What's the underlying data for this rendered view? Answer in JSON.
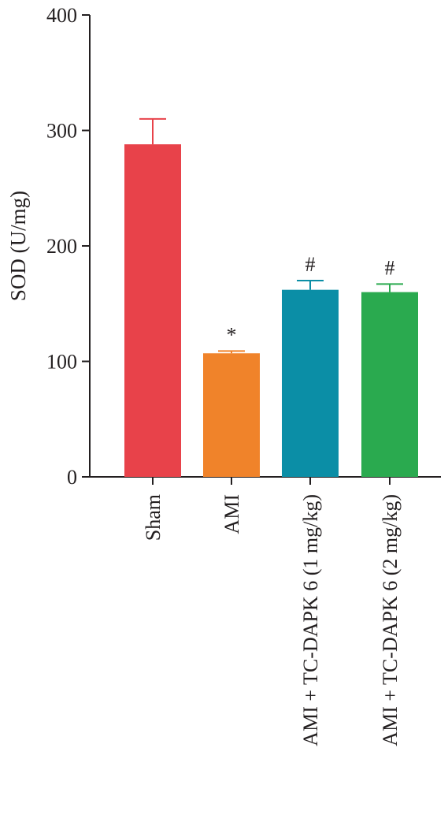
{
  "chart_data": {
    "type": "bar",
    "title": "",
    "xlabel": "",
    "ylabel": "SOD (U/mg)",
    "ylim": [
      0,
      400
    ],
    "yticks": [
      0,
      100,
      200,
      300,
      400
    ],
    "grid": false,
    "categories": [
      "Sham",
      "AMI",
      "AMI + TC-DAPK 6 (1 mg/kg)",
      "AMI + TC-DAPK 6 (2 mg/kg)"
    ],
    "values": [
      288,
      107,
      162,
      160
    ],
    "errors": [
      22,
      2,
      8,
      7
    ],
    "annotations": [
      "",
      "*",
      "#",
      "#"
    ],
    "colors": [
      "#e8424a",
      "#f0832a",
      "#0b8ea6",
      "#2aaa4f"
    ]
  }
}
